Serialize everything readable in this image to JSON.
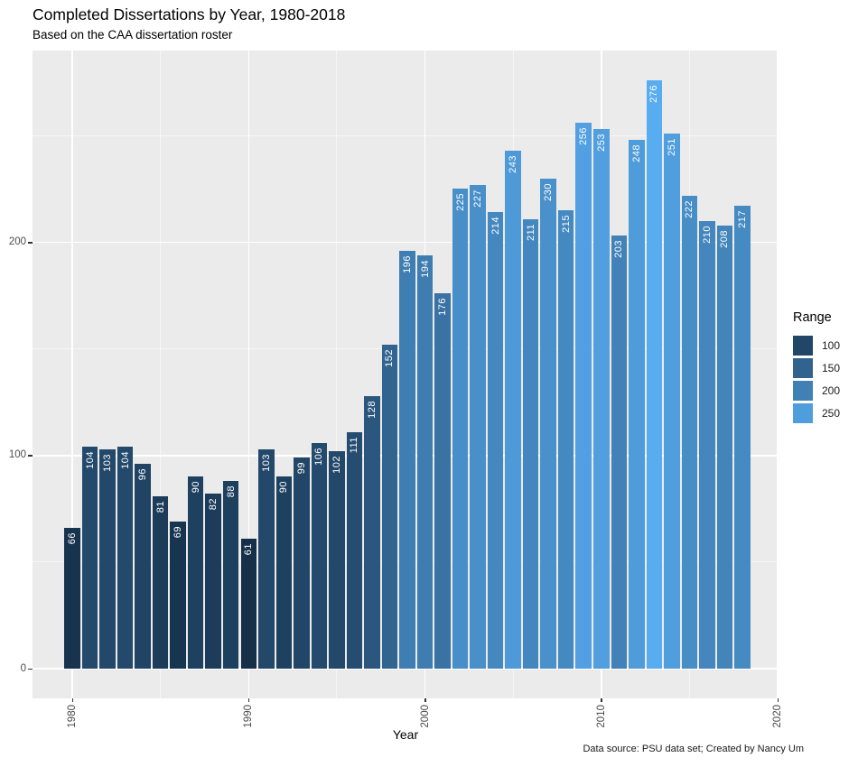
{
  "title": "Completed Dissertations by Year, 1980-2018",
  "subtitle": "Based on the CAA dissertation roster",
  "caption": "Data source: PSU data set; Created by Nancy Um",
  "x_axis": {
    "title": "Year",
    "tick_labels": [
      "1980",
      "1990",
      "2000",
      "2010",
      "2020"
    ]
  },
  "y_axis": {
    "tick_labels": [
      "0",
      "100",
      "200"
    ]
  },
  "legend": {
    "title": "Range",
    "items": [
      {
        "label": "100",
        "color": "#224668"
      },
      {
        "label": "150",
        "color": "#31638f"
      },
      {
        "label": "200",
        "color": "#4180b5"
      },
      {
        "label": "250",
        "color": "#509ddc"
      }
    ]
  },
  "style": {
    "panel_bg": "#ebebeb",
    "grid_major": "#ffffff",
    "grid_minor": "rgba(255,255,255,0.55)",
    "axis_text": "#4d4d4d",
    "tick_mark": "#333333",
    "bar_label": "#ffffff"
  },
  "chart_data": {
    "type": "bar",
    "title": "Completed Dissertations by Year, 1980-2018",
    "subtitle": "Based on the CAA dissertation roster",
    "xlabel": "Year",
    "ylabel": "",
    "ylim": [
      0,
      276
    ],
    "grid": true,
    "legend_position": "right",
    "x": [
      1980,
      1981,
      1982,
      1983,
      1984,
      1985,
      1986,
      1987,
      1988,
      1989,
      1990,
      1991,
      1992,
      1993,
      1994,
      1995,
      1996,
      1997,
      1998,
      1999,
      2000,
      2001,
      2002,
      2003,
      2004,
      2005,
      2006,
      2007,
      2008,
      2009,
      2010,
      2011,
      2012,
      2013,
      2014,
      2015,
      2016,
      2017,
      2018
    ],
    "values": [
      66,
      104,
      103,
      104,
      96,
      81,
      69,
      90,
      82,
      88,
      61,
      103,
      90,
      99,
      106,
      102,
      111,
      128,
      152,
      196,
      194,
      176,
      225,
      227,
      214,
      243,
      211,
      230,
      215,
      256,
      253,
      203,
      248,
      276,
      251,
      222,
      210,
      208,
      217
    ],
    "bar_labels_shown": true,
    "color_scale": {
      "type": "linear-gradient",
      "legend_title": "Range",
      "low_value": 61,
      "low_color": "#16304a",
      "high_value": 276,
      "high_color": "#58acf0"
    }
  }
}
